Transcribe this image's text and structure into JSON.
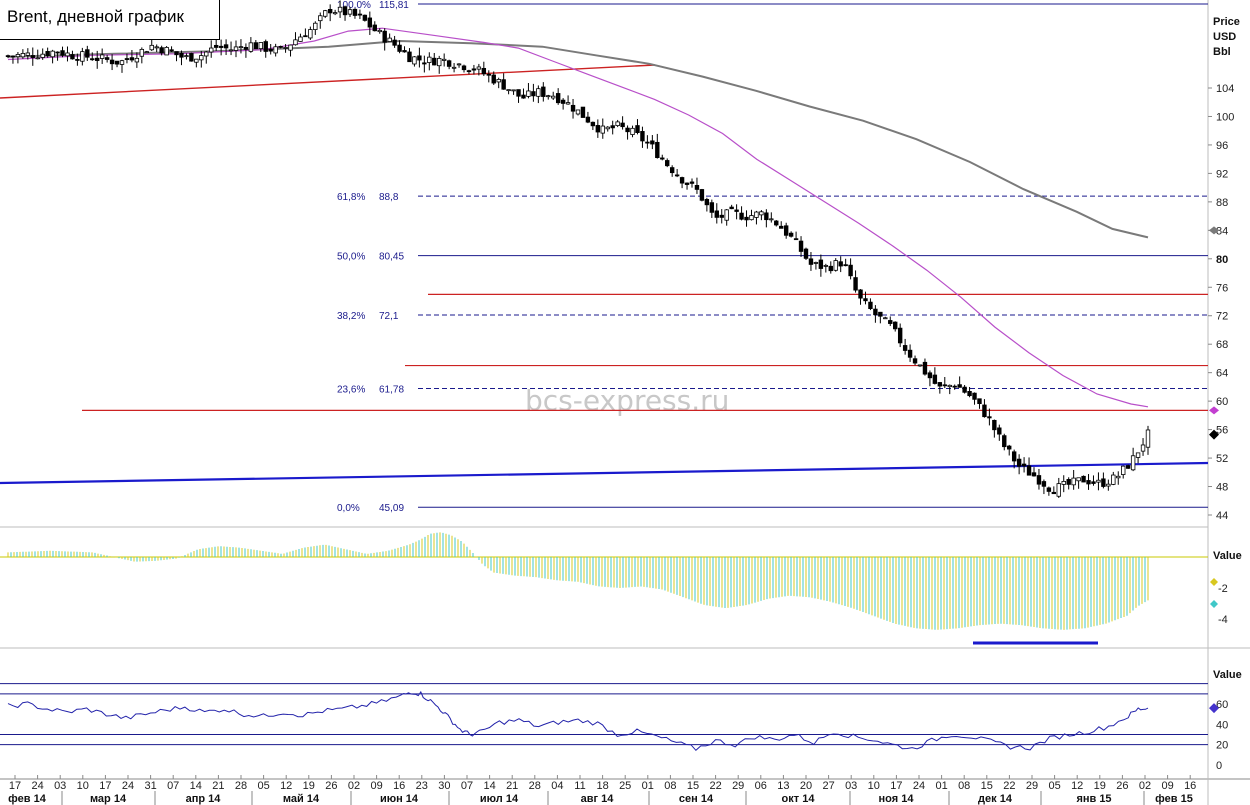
{
  "chart_data": {
    "type": "candlestick",
    "title": "Brent, дневной график",
    "watermark": "bcs-express.ru",
    "price_axis_label": [
      "Price",
      "USD",
      "Bbl"
    ],
    "price_ticks": [
      "104",
      "100",
      "96",
      "92",
      "88",
      "84",
      "80",
      "76",
      "72",
      "68",
      "64",
      "60",
      "56",
      "52",
      "48",
      "44"
    ],
    "price_range": [
      44,
      116
    ],
    "current_price": 55.3,
    "fibonacci": [
      {
        "label": "100,0%",
        "value": "115,81",
        "y": 115.81
      },
      {
        "label": "61,8%",
        "value": "88,8",
        "y": 88.8
      },
      {
        "label": "50,0%",
        "value": "80,45",
        "y": 80.45
      },
      {
        "label": "38,2%",
        "value": "72,1",
        "y": 72.1
      },
      {
        "label": "23,6%",
        "value": "61,78",
        "y": 61.78
      },
      {
        "label": "0,0%",
        "value": "45,09",
        "y": 45.09
      }
    ],
    "resistance_levels": [
      75.0,
      65.0,
      58.7
    ],
    "x_date_labels": [
      "17",
      "24",
      "03",
      "10",
      "17",
      "24",
      "31",
      "07",
      "14",
      "21",
      "28",
      "05",
      "12",
      "19",
      "26",
      "02",
      "09",
      "16",
      "23",
      "30",
      "07",
      "14",
      "21",
      "28",
      "04",
      "11",
      "18",
      "25",
      "01",
      "08",
      "15",
      "22",
      "29",
      "06",
      "13",
      "20",
      "27",
      "03",
      "10",
      "17",
      "24",
      "01",
      "08",
      "15",
      "22",
      "29",
      "05",
      "12",
      "19",
      "26",
      "02",
      "09",
      "16"
    ],
    "x_month_labels": [
      "фев 14",
      "мар 14",
      "апр 14",
      "май 14",
      "июн 14",
      "июл 14",
      "авг 14",
      "сен 14",
      "окт 14",
      "ноя 14",
      "дек 14",
      "янв 15",
      "фев 15"
    ],
    "close_path": [
      [
        0,
        108.5
      ],
      [
        2,
        108.8
      ],
      [
        3,
        109.2
      ],
      [
        4,
        108.6
      ],
      [
        5,
        108.4
      ],
      [
        6,
        108.0
      ],
      [
        7,
        107.6
      ],
      [
        8,
        108.8
      ],
      [
        9,
        110.0
      ],
      [
        10,
        109.2
      ],
      [
        11,
        108.2
      ],
      [
        12,
        108.6
      ],
      [
        13,
        109.8
      ],
      [
        14,
        109.4
      ],
      [
        15,
        110.2
      ],
      [
        16,
        109.6
      ],
      [
        17,
        109.2
      ],
      [
        18,
        111.0
      ],
      [
        19,
        112.4
      ],
      [
        20,
        115.1
      ],
      [
        21,
        114.6
      ],
      [
        22,
        113.8
      ],
      [
        23,
        111.8
      ],
      [
        24,
        110.2
      ],
      [
        25,
        108.4
      ],
      [
        26,
        107.8
      ],
      [
        27,
        108.0
      ],
      [
        28,
        107.4
      ],
      [
        29,
        106.8
      ],
      [
        30,
        105.6
      ],
      [
        31,
        104.2
      ],
      [
        32,
        102.6
      ],
      [
        33,
        103.4
      ],
      [
        34,
        103.0
      ],
      [
        35,
        101.6
      ],
      [
        36,
        99.8
      ],
      [
        37,
        98.0
      ],
      [
        38,
        98.6
      ],
      [
        39,
        97.6
      ],
      [
        40,
        96.0
      ],
      [
        41,
        93.4
      ],
      [
        42,
        91.2
      ],
      [
        43,
        89.4
      ],
      [
        44,
        85.6
      ],
      [
        45,
        86.4
      ],
      [
        46,
        86.0
      ],
      [
        47,
        86.4
      ],
      [
        48,
        84.8
      ],
      [
        49,
        82.4
      ],
      [
        50,
        79.2
      ],
      [
        51,
        78.8
      ],
      [
        52,
        79.6
      ],
      [
        53,
        74.4
      ],
      [
        54,
        72.2
      ],
      [
        55,
        70.4
      ],
      [
        56,
        67.0
      ],
      [
        57,
        64.4
      ],
      [
        58,
        61.8
      ],
      [
        59,
        62.4
      ],
      [
        60,
        60.6
      ],
      [
        61,
        57.8
      ],
      [
        62,
        53.8
      ],
      [
        63,
        50.8
      ],
      [
        64,
        49.4
      ],
      [
        65,
        47.6
      ],
      [
        66,
        48.2
      ],
      [
        67,
        49.0
      ],
      [
        68,
        48.4
      ],
      [
        69,
        49.2
      ],
      [
        70,
        51.6
      ],
      [
        71,
        55.3
      ]
    ],
    "ma_fast_path": [
      [
        0,
        108.0
      ],
      [
        5,
        108.6
      ],
      [
        10,
        108.8
      ],
      [
        15,
        109.4
      ],
      [
        18,
        110.6
      ],
      [
        20,
        112.0
      ],
      [
        22,
        112.4
      ],
      [
        25,
        111.4
      ],
      [
        28,
        110.4
      ],
      [
        30,
        109.6
      ],
      [
        32,
        107.8
      ],
      [
        34,
        106.0
      ],
      [
        36,
        104.2
      ],
      [
        38,
        102.4
      ],
      [
        40,
        100.2
      ],
      [
        42,
        97.6
      ],
      [
        44,
        94.0
      ],
      [
        46,
        91.0
      ],
      [
        48,
        88.0
      ],
      [
        50,
        85.0
      ],
      [
        52,
        81.8
      ],
      [
        54,
        78.4
      ],
      [
        56,
        74.6
      ],
      [
        58,
        70.4
      ],
      [
        60,
        66.8
      ],
      [
        62,
        63.6
      ],
      [
        64,
        61.0
      ],
      [
        66,
        59.6
      ],
      [
        67,
        59.2
      ]
    ],
    "ma_slow_path": [
      [
        0,
        108.4
      ],
      [
        6,
        108.8
      ],
      [
        12,
        109.2
      ],
      [
        18,
        109.8
      ],
      [
        22,
        110.6
      ],
      [
        26,
        110.3
      ],
      [
        30,
        109.8
      ],
      [
        33,
        108.6
      ],
      [
        36,
        107.4
      ],
      [
        39,
        105.6
      ],
      [
        42,
        103.6
      ],
      [
        45,
        101.4
      ],
      [
        48,
        99.4
      ],
      [
        51,
        96.8
      ],
      [
        54,
        93.6
      ],
      [
        57,
        89.8
      ],
      [
        60,
        86.6
      ],
      [
        62,
        84.2
      ],
      [
        64,
        83.0
      ]
    ],
    "oscillator": {
      "label": "Value",
      "ticks": [
        "-2",
        "-4"
      ],
      "range": [
        -6,
        1.5
      ],
      "histogram": [
        [
          0,
          0.3
        ],
        [
          4,
          0.4
        ],
        [
          8,
          0.3
        ],
        [
          10,
          0.0
        ],
        [
          12,
          -0.3
        ],
        [
          14,
          -0.25
        ],
        [
          16,
          -0.1
        ],
        [
          18,
          0.5
        ],
        [
          20,
          0.7
        ],
        [
          22,
          0.6
        ],
        [
          24,
          0.4
        ],
        [
          26,
          0.2
        ],
        [
          28,
          0.6
        ],
        [
          30,
          0.8
        ],
        [
          32,
          0.5
        ],
        [
          34,
          0.2
        ],
        [
          36,
          0.4
        ],
        [
          38,
          0.8
        ],
        [
          39,
          1.1
        ],
        [
          40,
          1.5
        ],
        [
          41,
          1.6
        ],
        [
          42,
          1.4
        ],
        [
          43,
          1.0
        ],
        [
          44,
          0.3
        ],
        [
          45,
          -0.5
        ],
        [
          46,
          -1.0
        ],
        [
          48,
          -1.2
        ],
        [
          50,
          -1.3
        ],
        [
          52,
          -1.5
        ],
        [
          54,
          -1.6
        ],
        [
          56,
          -1.9
        ],
        [
          58,
          -2.0
        ],
        [
          60,
          -1.9
        ],
        [
          62,
          -2.1
        ],
        [
          64,
          -2.6
        ],
        [
          66,
          -3.1
        ],
        [
          68,
          -3.3
        ],
        [
          70,
          -3.1
        ],
        [
          72,
          -2.7
        ],
        [
          74,
          -2.5
        ],
        [
          76,
          -2.6
        ],
        [
          78,
          -2.9
        ],
        [
          80,
          -3.3
        ],
        [
          82,
          -3.8
        ],
        [
          84,
          -4.3
        ],
        [
          86,
          -4.6
        ],
        [
          88,
          -4.7
        ],
        [
          90,
          -4.6
        ],
        [
          92,
          -4.4
        ],
        [
          94,
          -4.3
        ],
        [
          96,
          -4.4
        ],
        [
          98,
          -4.6
        ],
        [
          100,
          -4.7
        ],
        [
          102,
          -4.6
        ],
        [
          104,
          -4.3
        ],
        [
          106,
          -3.8
        ],
        [
          107,
          -3.2
        ],
        [
          108,
          -2.8
        ]
      ]
    },
    "rsi": {
      "label": "Value",
      "ticks": [
        "60",
        "40",
        "20",
        "0"
      ],
      "levels": [
        80,
        70,
        30,
        20
      ],
      "range": [
        0,
        85
      ],
      "line_path": [
        [
          0,
          58
        ],
        [
          2,
          60
        ],
        [
          4,
          55
        ],
        [
          6,
          52
        ],
        [
          8,
          55
        ],
        [
          10,
          50
        ],
        [
          12,
          46
        ],
        [
          14,
          50
        ],
        [
          16,
          54
        ],
        [
          18,
          57
        ],
        [
          20,
          52
        ],
        [
          22,
          55
        ],
        [
          24,
          50
        ],
        [
          26,
          48
        ],
        [
          28,
          52
        ],
        [
          30,
          49
        ],
        [
          32,
          53
        ],
        [
          34,
          55
        ],
        [
          36,
          58
        ],
        [
          38,
          62
        ],
        [
          40,
          68
        ],
        [
          41,
          72
        ],
        [
          42,
          70
        ],
        [
          43,
          63
        ],
        [
          44,
          55
        ],
        [
          45,
          45
        ],
        [
          46,
          35
        ],
        [
          47,
          30
        ],
        [
          48,
          32
        ],
        [
          50,
          42
        ],
        [
          52,
          44
        ],
        [
          54,
          38
        ],
        [
          56,
          42
        ],
        [
          58,
          44
        ],
        [
          60,
          41
        ],
        [
          62,
          30
        ],
        [
          64,
          33
        ],
        [
          66,
          28
        ],
        [
          68,
          22
        ],
        [
          70,
          16
        ],
        [
          72,
          24
        ],
        [
          74,
          20
        ],
        [
          76,
          28
        ],
        [
          78,
          25
        ],
        [
          80,
          30
        ],
        [
          82,
          22
        ],
        [
          84,
          33
        ],
        [
          86,
          28
        ],
        [
          88,
          25
        ],
        [
          90,
          20
        ],
        [
          92,
          16
        ],
        [
          94,
          24
        ],
        [
          96,
          30
        ],
        [
          98,
          28
        ],
        [
          100,
          23
        ],
        [
          102,
          18
        ],
        [
          104,
          17
        ],
        [
          106,
          26
        ],
        [
          108,
          30
        ],
        [
          110,
          33
        ],
        [
          112,
          38
        ],
        [
          114,
          48
        ],
        [
          115,
          55
        ],
        [
          116,
          56
        ]
      ]
    }
  }
}
